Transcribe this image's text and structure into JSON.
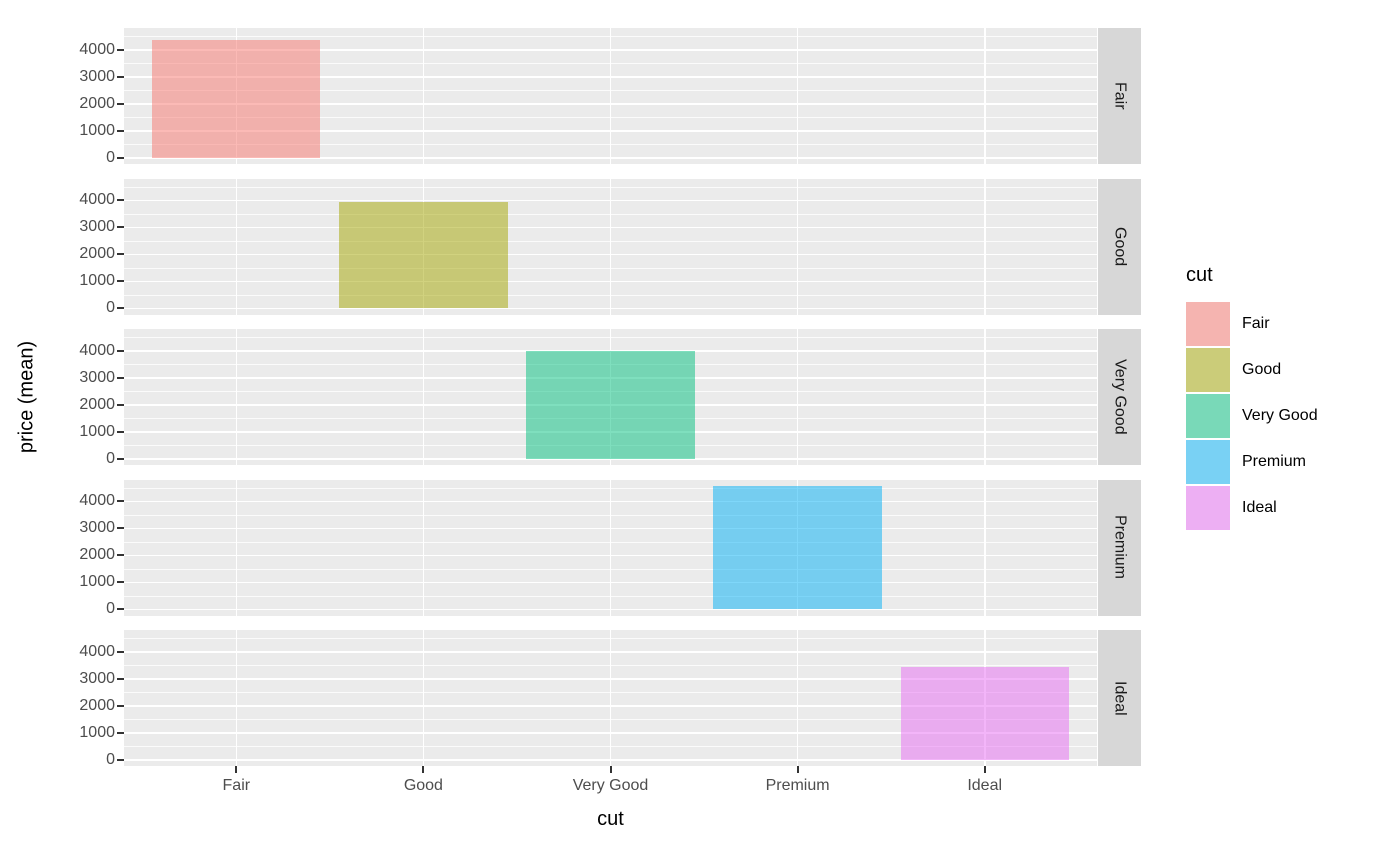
{
  "chart_data": {
    "type": "bar",
    "title": "",
    "xlabel": "cut",
    "ylabel": "price (mean)",
    "facet_variable": "cut",
    "categories": [
      "Fair",
      "Good",
      "Very Good",
      "Premium",
      "Ideal"
    ],
    "values": [
      4358.8,
      3928.9,
      3981.8,
      4584.3,
      3457.5
    ],
    "facet_labels": [
      "Fair",
      "Good",
      "Very Good",
      "Premium",
      "Ideal"
    ],
    "y_ticks": [
      0,
      1000,
      2000,
      3000,
      4000
    ],
    "y_minor_ticks": [
      500,
      1500,
      2500,
      3500,
      4500
    ],
    "ylim": [
      -229,
      4813
    ],
    "bar_width_fraction": 0.9,
    "x_expand": 0.6,
    "grid": true,
    "fill_alpha": 0.5,
    "series_colors": [
      "#F8766D",
      "#A3A500",
      "#00BF7D",
      "#00B0F6",
      "#E76BF3"
    ],
    "legend": {
      "title": "cut",
      "position": "right",
      "entries": [
        {
          "label": "Fair",
          "color": "#F8766D"
        },
        {
          "label": "Good",
          "color": "#A3A500"
        },
        {
          "label": "Very Good",
          "color": "#00BF7D"
        },
        {
          "label": "Premium",
          "color": "#00B0F6"
        },
        {
          "label": "Ideal",
          "color": "#E76BF3"
        }
      ]
    },
    "theme_colors": {
      "panel_background": "#EBEBEB",
      "grid_line": "#FFFFFF",
      "strip_background": "#D7D7D7",
      "axis_text": "#4D4D4D",
      "tick_mark": "#333333",
      "title_text": "#000000",
      "strip_text": "#1A1A1A"
    }
  }
}
